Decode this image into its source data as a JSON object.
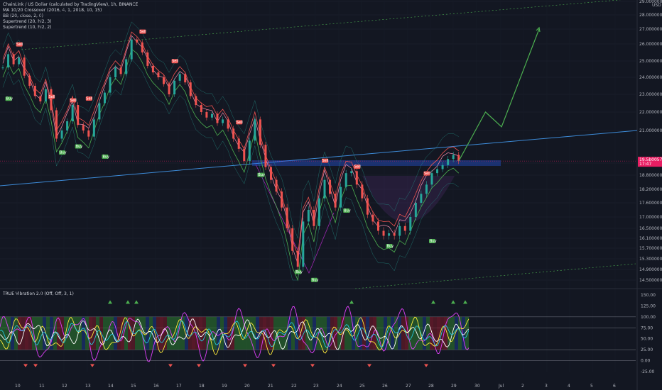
{
  "chart_data": [
    {
      "type": "line",
      "title": "ChainLink / US Dollar (calculated by TradingView), 1h, BINANCE",
      "indicators": [
        "MA 10/20 Crossover (2016, 4, 1, 2018, 10, 15)",
        "BB (20, close, 2, 0)",
        "Supertrend (20, hl2, 3)",
        "Supertrend (10, hl2, 2)"
      ],
      "currency": "USD",
      "x_ticks": [
        "10",
        "11",
        "12",
        "13",
        "14",
        "15",
        "16",
        "17",
        "18",
        "19",
        "20",
        "21",
        "22",
        "23",
        "24",
        "25",
        "26",
        "27",
        "28",
        "29",
        "30",
        "Jul",
        "2",
        "3",
        "4",
        "5",
        "6"
      ],
      "y_ticks": [
        "29.00000000",
        "28.00000000",
        "27.00000000",
        "26.00000000",
        "25.00000000",
        "24.00000000",
        "23.00000000",
        "22.00000000",
        "21.00000000",
        "19.40000000",
        "18.80000000",
        "18.20000000",
        "17.60000000",
        "17.00000000",
        "16.50000000",
        "16.10000000",
        "15.70000000",
        "15.30000000",
        "14.90000000",
        "14.50000000"
      ],
      "current_price": "19.5b00572",
      "price_sub": "17:47",
      "series": [
        {
          "values": [
            [
              0,
              24.6
            ],
            [
              1,
              25.4
            ],
            [
              2,
              24.8
            ],
            [
              3,
              25.2
            ],
            [
              4,
              24.1
            ],
            [
              5,
              23.5
            ],
            [
              6,
              22.9
            ],
            [
              7,
              22.6
            ],
            [
              8,
              23.3
            ],
            [
              9,
              22.1
            ],
            [
              10,
              20.6
            ],
            [
              11,
              21.0
            ],
            [
              12,
              21.5
            ],
            [
              13,
              22.4
            ],
            [
              14,
              21.3
            ],
            [
              15,
              21.0
            ],
            [
              16,
              20.7
            ],
            [
              17,
              21.6
            ],
            [
              18,
              22.5
            ],
            [
              19,
              23.1
            ],
            [
              20,
              24.0
            ],
            [
              21,
              24.6
            ],
            [
              22,
              24.2
            ],
            [
              23,
              25.1
            ],
            [
              24,
              26.3
            ],
            [
              25,
              26.1
            ],
            [
              26,
              25.5
            ],
            [
              27,
              24.7
            ],
            [
              28,
              24.3
            ],
            [
              29,
              24.0
            ],
            [
              30,
              23.6
            ],
            [
              31,
              23.0
            ],
            [
              32,
              23.8
            ],
            [
              33,
              24.2
            ],
            [
              34,
              23.7
            ],
            [
              35,
              22.9
            ],
            [
              36,
              22.4
            ],
            [
              37,
              22.0
            ],
            [
              38,
              21.7
            ],
            [
              39,
              21.9
            ],
            [
              40,
              21.4
            ],
            [
              41,
              21.6
            ],
            [
              42,
              21.1
            ],
            [
              43,
              20.6
            ],
            [
              44,
              20.1
            ],
            [
              45,
              19.5
            ],
            [
              46,
              20.5
            ],
            [
              47,
              21.6
            ],
            [
              48,
              20.3
            ],
            [
              49,
              19.2
            ],
            [
              50,
              18.6
            ],
            [
              51,
              18.1
            ],
            [
              52,
              17.4
            ],
            [
              53,
              16.5
            ],
            [
              54,
              15.6
            ],
            [
              55,
              15.0
            ],
            [
              56,
              16.8
            ],
            [
              57,
              17.3
            ],
            [
              58,
              16.6
            ],
            [
              59,
              17.8
            ],
            [
              60,
              18.6
            ],
            [
              61,
              18.0
            ],
            [
              62,
              17.4
            ],
            [
              63,
              18.3
            ],
            [
              64,
              18.9
            ],
            [
              65,
              19.0
            ],
            [
              66,
              18.4
            ],
            [
              67,
              17.8
            ],
            [
              68,
              17.1
            ],
            [
              69,
              16.8
            ],
            [
              70,
              16.4
            ],
            [
              71,
              16.2
            ],
            [
              72,
              16.3
            ],
            [
              73,
              16.2
            ],
            [
              74,
              16.6
            ],
            [
              75,
              16.4
            ],
            [
              76,
              17.0
            ],
            [
              77,
              17.6
            ],
            [
              78,
              18.0
            ],
            [
              79,
              18.4
            ],
            [
              80,
              18.9
            ],
            [
              81,
              19.1
            ],
            [
              82,
              19.3
            ],
            [
              83,
              19.6
            ],
            [
              84,
              19.8
            ],
            [
              85,
              19.5
            ]
          ]
        }
      ],
      "projection": [
        [
          85,
          19.5
        ],
        [
          90,
          22.0
        ],
        [
          93,
          21.2
        ],
        [
          100,
          27.0
        ]
      ],
      "annotations": {
        "buy_label": "Buy",
        "sell_label": "Sell"
      },
      "grid": true
    },
    {
      "type": "line",
      "title": "TRUE Vibration 2.0 (Off, Off, 3, 1)",
      "y_ticks": [
        "150.00",
        "125.00",
        "100.00",
        "75.00",
        "50.00",
        "25.00",
        "0.00",
        "-25.00"
      ],
      "grid": true
    }
  ]
}
